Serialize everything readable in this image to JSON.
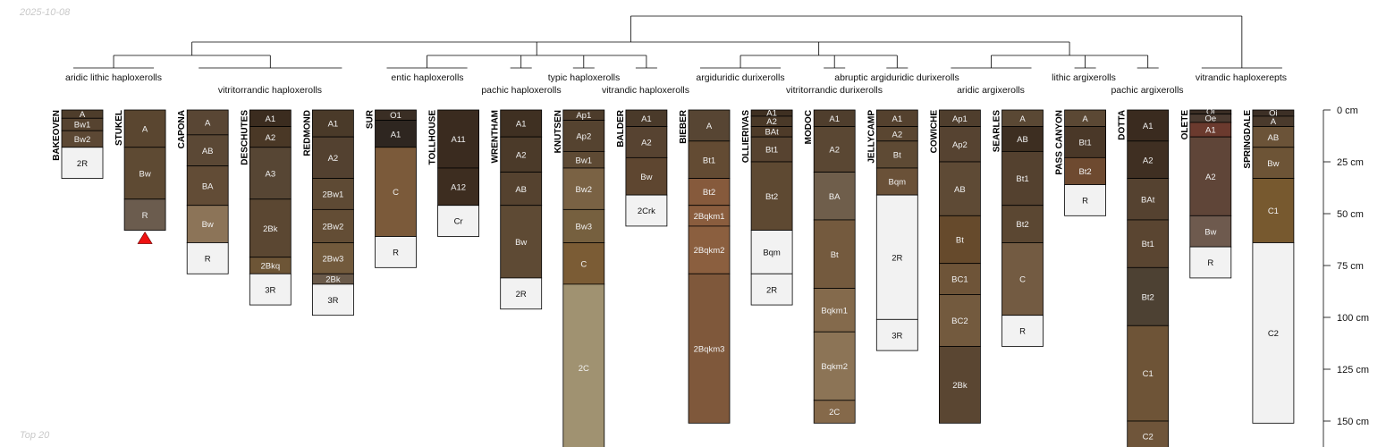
{
  "date_stamp": "2025-10-08",
  "footer_note": "Top 20",
  "depth_axis": {
    "unit": "cm",
    "max": 163,
    "ticks": [
      {
        "value": 0,
        "label": "0 cm"
      },
      {
        "value": 25,
        "label": "25 cm"
      },
      {
        "value": 50,
        "label": "50 cm"
      },
      {
        "value": 75,
        "label": "75 cm"
      },
      {
        "value": 100,
        "label": "100 cm"
      },
      {
        "value": 125,
        "label": "125 cm"
      },
      {
        "value": 150,
        "label": "150 cm"
      }
    ]
  },
  "taxa": [
    {
      "label": "aridic lithic haploxerolls",
      "members": [
        0,
        1
      ]
    },
    {
      "label": "vitritorrandic haploxerolls",
      "members": [
        2,
        3,
        4
      ]
    },
    {
      "label": "entic haploxerolls",
      "members": [
        5,
        6
      ]
    },
    {
      "label": "pachic haploxerolls",
      "members": [
        7
      ]
    },
    {
      "label": "typic haploxerolls",
      "members": [
        8
      ]
    },
    {
      "label": "vitrandic haploxerolls",
      "members": [
        9
      ]
    },
    {
      "label": "argiduridic durixerolls",
      "members": [
        10,
        11
      ]
    },
    {
      "label": "vitritorrandic durixerolls",
      "members": [
        12
      ]
    },
    {
      "label": "abruptic argiduridic durixerolls",
      "members": [
        13
      ]
    },
    {
      "label": "aridic argixerolls",
      "members": [
        14,
        15
      ]
    },
    {
      "label": "lithic argixerolls",
      "members": [
        16
      ]
    },
    {
      "label": "pachic argixerolls",
      "members": [
        17
      ]
    },
    {
      "label": "vitrandic haploxerepts",
      "members": [
        18,
        19
      ]
    }
  ],
  "profiles": [
    {
      "name": "BAKEOVEN",
      "horizons": [
        {
          "name": "A",
          "top": 0,
          "bottom": 4,
          "color": "#4e3d2b"
        },
        {
          "name": "Bw1",
          "top": 4,
          "bottom": 10,
          "color": "#564330"
        },
        {
          "name": "Bw2",
          "top": 10,
          "bottom": 18,
          "color": "#5c4834"
        },
        {
          "name": "2R",
          "top": 18,
          "bottom": 33,
          "color": "#f2f2f2"
        }
      ]
    },
    {
      "name": "STUKEL",
      "horizons": [
        {
          "name": "A",
          "top": 0,
          "bottom": 18,
          "color": "#5a4630"
        },
        {
          "name": "Bw",
          "top": 18,
          "bottom": 43,
          "color": "#5e4a33"
        },
        {
          "name": "R",
          "top": 43,
          "bottom": 58,
          "color": "#6b5c4e"
        }
      ]
    },
    {
      "name": "CAPONA",
      "horizons": [
        {
          "name": "A",
          "top": 0,
          "bottom": 12,
          "color": "#594634"
        },
        {
          "name": "AB",
          "top": 12,
          "bottom": 27,
          "color": "#5b4835"
        },
        {
          "name": "BA",
          "top": 27,
          "bottom": 46,
          "color": "#624c36"
        },
        {
          "name": "Bw",
          "top": 46,
          "bottom": 64,
          "color": "#8c7458"
        },
        {
          "name": "R",
          "top": 64,
          "bottom": 79,
          "color": "#f2f2f2"
        }
      ]
    },
    {
      "name": "DESCHUTES",
      "horizons": [
        {
          "name": "A1",
          "top": 0,
          "bottom": 8,
          "color": "#3b2c1f"
        },
        {
          "name": "A2",
          "top": 8,
          "bottom": 18,
          "color": "#4a3826"
        },
        {
          "name": "A3",
          "top": 18,
          "bottom": 43,
          "color": "#574634"
        },
        {
          "name": "2Bk",
          "top": 43,
          "bottom": 71,
          "color": "#5b4732"
        },
        {
          "name": "2Bkq",
          "top": 71,
          "bottom": 79,
          "color": "#6d5536"
        },
        {
          "name": "3R",
          "top": 79,
          "bottom": 94,
          "color": "#f2f2f2"
        }
      ]
    },
    {
      "name": "REDMOND",
      "horizons": [
        {
          "name": "A1",
          "top": 0,
          "bottom": 13,
          "color": "#4a3a29"
        },
        {
          "name": "A2",
          "top": 13,
          "bottom": 33,
          "color": "#534130"
        },
        {
          "name": "2Bw1",
          "top": 33,
          "bottom": 48,
          "color": "#5e4a34"
        },
        {
          "name": "2Bw2",
          "top": 48,
          "bottom": 64,
          "color": "#634d35"
        },
        {
          "name": "2Bw3",
          "top": 64,
          "bottom": 79,
          "color": "#725a3c"
        },
        {
          "name": "2Bk",
          "top": 79,
          "bottom": 84,
          "color": "#6a5a4a"
        },
        {
          "name": "3R",
          "top": 84,
          "bottom": 99,
          "color": "#f2f2f2"
        }
      ]
    },
    {
      "name": "SUR",
      "horizons": [
        {
          "name": "O1",
          "top": 0,
          "bottom": 5,
          "color": "#3a2e24"
        },
        {
          "name": "A1",
          "top": 5,
          "bottom": 18,
          "color": "#2e2620"
        },
        {
          "name": "C",
          "top": 18,
          "bottom": 61,
          "color": "#7b5a3a"
        },
        {
          "name": "R",
          "top": 61,
          "bottom": 76,
          "color": "#f2f2f2"
        }
      ]
    },
    {
      "name": "TOLLHOUSE",
      "horizons": [
        {
          "name": "A11",
          "top": 0,
          "bottom": 28,
          "color": "#3a2b1f"
        },
        {
          "name": "A12",
          "top": 28,
          "bottom": 46,
          "color": "#3d2d20"
        },
        {
          "name": "Cr",
          "top": 46,
          "bottom": 61,
          "color": "#f2f2f2"
        }
      ]
    },
    {
      "name": "WRENTHAM",
      "horizons": [
        {
          "name": "A1",
          "top": 0,
          "bottom": 13,
          "color": "#3f3022"
        },
        {
          "name": "A2",
          "top": 13,
          "bottom": 30,
          "color": "#4b3a29"
        },
        {
          "name": "AB",
          "top": 30,
          "bottom": 46,
          "color": "#55422f"
        },
        {
          "name": "Bw",
          "top": 46,
          "bottom": 81,
          "color": "#5e4a34"
        },
        {
          "name": "2R",
          "top": 81,
          "bottom": 96,
          "color": "#f2f2f2"
        }
      ]
    },
    {
      "name": "KNUTSEN",
      "horizons": [
        {
          "name": "Ap1",
          "top": 0,
          "bottom": 5,
          "color": "#4d3c2b"
        },
        {
          "name": "Ap2",
          "top": 5,
          "bottom": 20,
          "color": "#554330"
        },
        {
          "name": "Bw1",
          "top": 20,
          "bottom": 28,
          "color": "#5e4a34"
        },
        {
          "name": "Bw2",
          "top": 28,
          "bottom": 48,
          "color": "#7a6244"
        },
        {
          "name": "Bw3",
          "top": 48,
          "bottom": 64,
          "color": "#76603f"
        },
        {
          "name": "C",
          "top": 64,
          "bottom": 84,
          "color": "#7b5c35"
        },
        {
          "name": "2C",
          "top": 84,
          "bottom": 168,
          "color": "#a09271"
        }
      ]
    },
    {
      "name": "BALDER",
      "horizons": [
        {
          "name": "A1",
          "top": 0,
          "bottom": 8,
          "color": "#4a3a2a"
        },
        {
          "name": "A2",
          "top": 8,
          "bottom": 23,
          "color": "#574331"
        },
        {
          "name": "Bw",
          "top": 23,
          "bottom": 41,
          "color": "#5e4630"
        },
        {
          "name": "2Crk",
          "top": 41,
          "bottom": 56,
          "color": "#f2f2f2"
        }
      ]
    },
    {
      "name": "BIEBER",
      "horizons": [
        {
          "name": "A",
          "top": 0,
          "bottom": 15,
          "color": "#574533"
        },
        {
          "name": "Bt1",
          "top": 15,
          "bottom": 33,
          "color": "#634b33"
        },
        {
          "name": "Bt2",
          "top": 33,
          "bottom": 46,
          "color": "#865a3c"
        },
        {
          "name": "2Bqkm1",
          "top": 46,
          "bottom": 56,
          "color": "#8a5d3e"
        },
        {
          "name": "2Bqkm2",
          "top": 56,
          "bottom": 79,
          "color": "#8b5f3f"
        },
        {
          "name": "2Bqkm3",
          "top": 79,
          "bottom": 151,
          "color": "#7f583b"
        }
      ]
    },
    {
      "name": "OLLIERIVAS",
      "horizons": [
        {
          "name": "A1",
          "top": 0,
          "bottom": 3,
          "color": "#3f3022"
        },
        {
          "name": "A2",
          "top": 3,
          "bottom": 8,
          "color": "#4a3928"
        },
        {
          "name": "BAt",
          "top": 8,
          "bottom": 13,
          "color": "#4e3b29"
        },
        {
          "name": "Bt1",
          "top": 13,
          "bottom": 25,
          "color": "#574330"
        },
        {
          "name": "Bt2",
          "top": 25,
          "bottom": 58,
          "color": "#5e4932"
        },
        {
          "name": "Bqm",
          "top": 58,
          "bottom": 79,
          "color": "#f2f2f2"
        },
        {
          "name": "2R",
          "top": 79,
          "bottom": 94,
          "color": "#f2f2f2"
        }
      ]
    },
    {
      "name": "MODOC",
      "horizons": [
        {
          "name": "A1",
          "top": 0,
          "bottom": 8,
          "color": "#4f3e2d"
        },
        {
          "name": "A2",
          "top": 8,
          "bottom": 30,
          "color": "#5a4733"
        },
        {
          "name": "BA",
          "top": 30,
          "bottom": 53,
          "color": "#6f5e4b"
        },
        {
          "name": "Bt",
          "top": 53,
          "bottom": 86,
          "color": "#745a3e"
        },
        {
          "name": "Bqkm1",
          "top": 86,
          "bottom": 107,
          "color": "#846a4c"
        },
        {
          "name": "Bqkm2",
          "top": 107,
          "bottom": 140,
          "color": "#8c7456"
        },
        {
          "name": "2C",
          "top": 140,
          "bottom": 151,
          "color": "#85694a"
        }
      ]
    },
    {
      "name": "JELLYCAMP",
      "horizons": [
        {
          "name": "A1",
          "top": 0,
          "bottom": 8,
          "color": "#54412e"
        },
        {
          "name": "A2",
          "top": 8,
          "bottom": 15,
          "color": "#5a4631"
        },
        {
          "name": "Bt",
          "top": 15,
          "bottom": 28,
          "color": "#5e4a34"
        },
        {
          "name": "Bqm",
          "top": 28,
          "bottom": 41,
          "color": "#6a5138"
        },
        {
          "name": "2R",
          "top": 41,
          "bottom": 101,
          "color": "#f2f2f2"
        },
        {
          "name": "3R",
          "top": 101,
          "bottom": 116,
          "color": "#f2f2f2"
        }
      ]
    },
    {
      "name": "COWICHE",
      "horizons": [
        {
          "name": "Ap1",
          "top": 0,
          "bottom": 8,
          "color": "#4f3e2d"
        },
        {
          "name": "Ap2",
          "top": 8,
          "bottom": 25,
          "color": "#564331"
        },
        {
          "name": "AB",
          "top": 25,
          "bottom": 51,
          "color": "#5e4a35"
        },
        {
          "name": "Bt",
          "top": 51,
          "bottom": 74,
          "color": "#664a2c"
        },
        {
          "name": "BC1",
          "top": 74,
          "bottom": 89,
          "color": "#6e5438"
        },
        {
          "name": "BC2",
          "top": 89,
          "bottom": 114,
          "color": "#735a3e"
        },
        {
          "name": "2Bk",
          "top": 114,
          "bottom": 151,
          "color": "#5a4632"
        }
      ]
    },
    {
      "name": "SEARLES",
      "horizons": [
        {
          "name": "A",
          "top": 0,
          "bottom": 8,
          "color": "#5a4834"
        },
        {
          "name": "AB",
          "top": 8,
          "bottom": 20,
          "color": "#3d2e21"
        },
        {
          "name": "Bt1",
          "top": 20,
          "bottom": 46,
          "color": "#54412f"
        },
        {
          "name": "Bt2",
          "top": 46,
          "bottom": 64,
          "color": "#5b4732"
        },
        {
          "name": "C",
          "top": 64,
          "bottom": 99,
          "color": "#735b42"
        },
        {
          "name": "R",
          "top": 99,
          "bottom": 114,
          "color": "#f2f2f2"
        }
      ]
    },
    {
      "name": "PASS CANYON",
      "horizons": [
        {
          "name": "A",
          "top": 0,
          "bottom": 8,
          "color": "#5b4834"
        },
        {
          "name": "Bt1",
          "top": 8,
          "bottom": 23,
          "color": "#4a3828"
        },
        {
          "name": "Bt2",
          "top": 23,
          "bottom": 36,
          "color": "#6e4a30"
        },
        {
          "name": "R",
          "top": 36,
          "bottom": 51,
          "color": "#f2f2f2"
        }
      ]
    },
    {
      "name": "DOTTA",
      "horizons": [
        {
          "name": "A1",
          "top": 0,
          "bottom": 15,
          "color": "#3a2b1f"
        },
        {
          "name": "A2",
          "top": 15,
          "bottom": 33,
          "color": "#3f2f22"
        },
        {
          "name": "BAt",
          "top": 33,
          "bottom": 53,
          "color": "#554230"
        },
        {
          "name": "Bt1",
          "top": 53,
          "bottom": 76,
          "color": "#5a4531"
        },
        {
          "name": "Bt2",
          "top": 76,
          "bottom": 104,
          "color": "#4d4133"
        },
        {
          "name": "C1",
          "top": 104,
          "bottom": 150,
          "color": "#6e5437"
        },
        {
          "name": "C2",
          "top": 150,
          "bottom": 168,
          "color": "#6f553a"
        }
      ]
    },
    {
      "name": "OLETE",
      "horizons": [
        {
          "name": "Oi",
          "top": 0,
          "bottom": 2,
          "color": "#3a2d24"
        },
        {
          "name": "Oe",
          "top": 2,
          "bottom": 6,
          "color": "#4a3a30"
        },
        {
          "name": "A1",
          "top": 6,
          "bottom": 13,
          "color": "#6b3a2e"
        },
        {
          "name": "A2",
          "top": 13,
          "bottom": 51,
          "color": "#5f4538"
        },
        {
          "name": "Bw",
          "top": 51,
          "bottom": 66,
          "color": "#6e5a4e"
        },
        {
          "name": "R",
          "top": 66,
          "bottom": 81,
          "color": "#f2f2f2"
        }
      ]
    },
    {
      "name": "SPRINGDALE",
      "horizons": [
        {
          "name": "Oi",
          "top": 0,
          "bottom": 3,
          "color": "#3d3026"
        },
        {
          "name": "A",
          "top": 3,
          "bottom": 8,
          "color": "#4a3a2c"
        },
        {
          "name": "AB",
          "top": 8,
          "bottom": 18,
          "color": "#6b5338"
        },
        {
          "name": "Bw",
          "top": 18,
          "bottom": 33,
          "color": "#6d5436"
        },
        {
          "name": "C1",
          "top": 33,
          "bottom": 64,
          "color": "#77592f"
        },
        {
          "name": "C2",
          "top": 64,
          "bottom": 151,
          "color": "#f2f2f2"
        }
      ]
    }
  ]
}
